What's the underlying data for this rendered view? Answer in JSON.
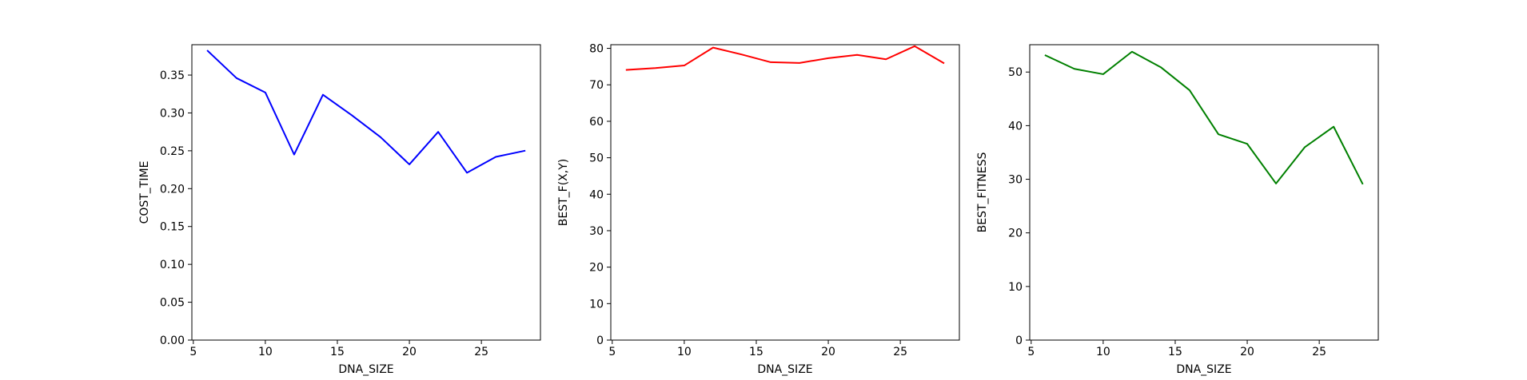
{
  "chart_data": [
    {
      "type": "line",
      "x": [
        6,
        8,
        10,
        12,
        14,
        16,
        18,
        20,
        22,
        24,
        26,
        28
      ],
      "series": [
        {
          "color": "#0000ff",
          "values": [
            0.382,
            0.346,
            0.327,
            0.245,
            0.324,
            0.297,
            0.268,
            0.232,
            0.275,
            0.221,
            0.242,
            0.25
          ]
        }
      ],
      "title": "",
      "xlabel": "DNA_SIZE",
      "ylabel": "COST_TIME",
      "xlim": [
        4.9,
        29.1
      ],
      "ylim": [
        0,
        0.3901
      ],
      "xticks": [
        5,
        10,
        15,
        20,
        25
      ],
      "yticks": [
        0.0,
        0.05,
        0.1,
        0.15,
        0.2,
        0.25,
        0.3,
        0.35
      ],
      "ytick_decimals": 2,
      "grid": false
    },
    {
      "type": "line",
      "x": [
        6,
        8,
        10,
        12,
        14,
        16,
        18,
        20,
        22,
        24,
        26,
        28
      ],
      "series": [
        {
          "color": "#ff0000",
          "values": [
            74.1,
            74.6,
            75.3,
            80.2,
            78.3,
            76.2,
            76.0,
            77.3,
            78.2,
            77.0,
            80.6,
            76.0
          ]
        }
      ],
      "title": "",
      "xlabel": "DNA_SIZE",
      "ylabel": "BEST_F(X,Y)",
      "xlim": [
        4.9,
        29.1
      ],
      "ylim": [
        0,
        81.0
      ],
      "xticks": [
        5,
        10,
        15,
        20,
        25
      ],
      "yticks": [
        0,
        10,
        20,
        30,
        40,
        50,
        60,
        70,
        80
      ],
      "ytick_decimals": 0,
      "grid": false
    },
    {
      "type": "line",
      "x": [
        6,
        8,
        10,
        12,
        14,
        16,
        18,
        20,
        22,
        24,
        26,
        28
      ],
      "series": [
        {
          "color": "#008000",
          "values": [
            53.1,
            50.6,
            49.6,
            53.8,
            50.9,
            46.6,
            38.4,
            36.6,
            29.2,
            36.0,
            39.8,
            29.2
          ]
        }
      ],
      "title": "",
      "xlabel": "DNA_SIZE",
      "ylabel": "BEST_FITNESS",
      "xlim": [
        4.9,
        29.1
      ],
      "ylim": [
        0,
        55.1
      ],
      "xticks": [
        5,
        10,
        15,
        20,
        25
      ],
      "yticks": [
        0,
        10,
        20,
        30,
        40,
        50
      ],
      "ytick_decimals": 0,
      "grid": false
    }
  ]
}
